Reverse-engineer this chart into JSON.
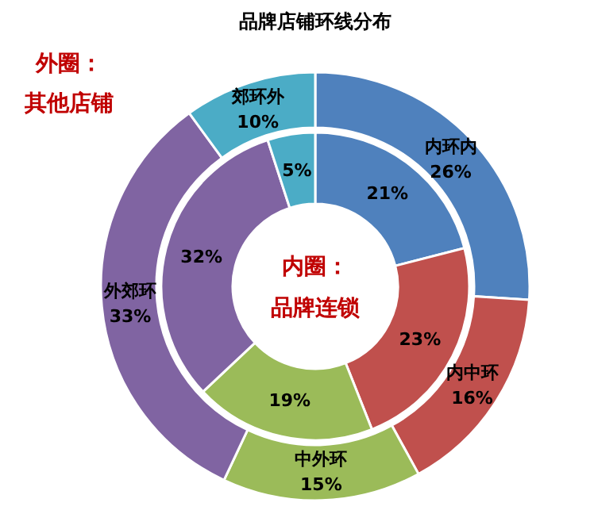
{
  "chart_data": {
    "type": "donut",
    "title": "品牌店铺环线分布",
    "categories": [
      "内环内",
      "内中环",
      "中外环",
      "外郊环",
      "郊环外"
    ],
    "colors": [
      "#4f81bd",
      "#c0504d",
      "#9bbb59",
      "#8064a2",
      "#4bacc6"
    ],
    "series": [
      {
        "name": "外圈：其他店铺",
        "values": [
          26,
          16,
          15,
          33,
          10
        ],
        "value_labels": [
          "26%",
          "16%",
          "15%",
          "33%",
          "10%"
        ]
      },
      {
        "name": "内圈：品牌连锁",
        "values": [
          21,
          23,
          19,
          32,
          5
        ],
        "value_labels": [
          "21%",
          "23%",
          "19%",
          "32%",
          "5%"
        ]
      }
    ]
  }
}
